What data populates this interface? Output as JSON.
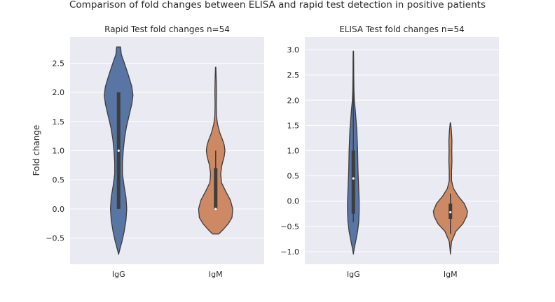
{
  "figure": {
    "suptitle": "Comparison of fold changes between ELISA and rapid test detection in positive patients"
  },
  "colors": {
    "background": "#eaeaf2",
    "grid": "#ffffff",
    "igg": "#5875a4",
    "igm": "#cc8963",
    "outline": "#3d3d3d",
    "box": "#3d3d3d",
    "median": "#ffffff"
  },
  "chart_data": [
    {
      "type": "violin",
      "title": "Rapid Test fold changes n=54",
      "xlabel": "",
      "ylabel": "Fold change",
      "categories": [
        "IgG",
        "IgM"
      ],
      "ylim": [
        -0.95,
        2.95
      ],
      "yticks": [
        -0.5,
        0.0,
        0.5,
        1.0,
        1.5,
        2.0,
        2.5
      ],
      "ytick_labels": [
        "−0.5",
        "0.0",
        "0.5",
        "1.0",
        "1.5",
        "2.0",
        "2.5"
      ],
      "grid": true,
      "series": [
        {
          "category": "IgG",
          "range": [
            -0.78,
            2.78
          ],
          "box": {
            "q1": 0.0,
            "median": 1.0,
            "q3": 2.0,
            "whisker_low": 0.0,
            "whisker_high": 2.0
          },
          "profile": [
            [
              -0.78,
              0
            ],
            [
              -0.7,
              0.03
            ],
            [
              -0.55,
              0.09
            ],
            [
              -0.4,
              0.14
            ],
            [
              -0.2,
              0.19
            ],
            [
              0.0,
              0.21
            ],
            [
              0.2,
              0.19
            ],
            [
              0.4,
              0.14
            ],
            [
              0.6,
              0.1
            ],
            [
              0.8,
              0.1
            ],
            [
              1.0,
              0.12
            ],
            [
              1.2,
              0.15
            ],
            [
              1.4,
              0.2
            ],
            [
              1.6,
              0.27
            ],
            [
              1.8,
              0.34
            ],
            [
              1.95,
              0.37
            ],
            [
              2.1,
              0.34
            ],
            [
              2.3,
              0.25
            ],
            [
              2.5,
              0.15
            ],
            [
              2.65,
              0.07
            ],
            [
              2.78,
              0.05
            ]
          ]
        },
        {
          "category": "IgM",
          "range": [
            -0.43,
            2.43
          ],
          "box": {
            "q1": 0.0,
            "median": 0.0,
            "q3": 0.7,
            "whisker_low": 0.0,
            "whisker_high": 1.0
          },
          "profile": [
            [
              -0.43,
              0.08
            ],
            [
              -0.35,
              0.2
            ],
            [
              -0.25,
              0.33
            ],
            [
              -0.15,
              0.42
            ],
            [
              0.0,
              0.44
            ],
            [
              0.15,
              0.38
            ],
            [
              0.3,
              0.26
            ],
            [
              0.45,
              0.15
            ],
            [
              0.6,
              0.13
            ],
            [
              0.75,
              0.16
            ],
            [
              0.9,
              0.22
            ],
            [
              1.0,
              0.24
            ],
            [
              1.1,
              0.22
            ],
            [
              1.2,
              0.17
            ],
            [
              1.3,
              0.11
            ],
            [
              1.45,
              0.05
            ],
            [
              1.6,
              0.02
            ],
            [
              1.8,
              0.015
            ],
            [
              2.0,
              0.02
            ],
            [
              2.2,
              0.015
            ],
            [
              2.43,
              0.005
            ]
          ]
        }
      ]
    },
    {
      "type": "violin",
      "title": "ELISA Test fold changes n=54",
      "xlabel": "",
      "ylabel": "",
      "categories": [
        "IgG",
        "IgM"
      ],
      "ylim": [
        -1.25,
        3.25
      ],
      "yticks": [
        -1.0,
        -0.5,
        0.0,
        0.5,
        1.0,
        1.5,
        2.0,
        2.5,
        3.0
      ],
      "ytick_labels": [
        "−1.0",
        "−0.5",
        "0.0",
        "0.5",
        "1.0",
        "1.5",
        "2.0",
        "2.5",
        "3.0"
      ],
      "grid": true,
      "series": [
        {
          "category": "IgG",
          "range": [
            -1.05,
            2.97
          ],
          "box": {
            "q1": -0.25,
            "median": 0.45,
            "q3": 1.0,
            "whisker_low": -0.42,
            "whisker_high": 2.9
          },
          "profile": [
            [
              -1.05,
              0
            ],
            [
              -0.95,
              0.02
            ],
            [
              -0.8,
              0.06
            ],
            [
              -0.6,
              0.11
            ],
            [
              -0.4,
              0.14
            ],
            [
              -0.2,
              0.15
            ],
            [
              0.0,
              0.15
            ],
            [
              0.2,
              0.14
            ],
            [
              0.4,
              0.13
            ],
            [
              0.6,
              0.12
            ],
            [
              0.8,
              0.115
            ],
            [
              1.0,
              0.11
            ],
            [
              1.2,
              0.1
            ],
            [
              1.4,
              0.09
            ],
            [
              1.6,
              0.07
            ],
            [
              1.8,
              0.05
            ],
            [
              2.0,
              0.025
            ],
            [
              2.2,
              0.015
            ],
            [
              2.5,
              0.01
            ],
            [
              2.8,
              0.008
            ],
            [
              2.97,
              0.005
            ]
          ]
        },
        {
          "category": "IgM",
          "range": [
            -1.05,
            1.55
          ],
          "box": {
            "q1": -0.35,
            "median": -0.22,
            "q3": -0.05,
            "whisker_low": -0.65,
            "whisker_high": 0.15
          },
          "profile": [
            [
              -1.05,
              0
            ],
            [
              -0.95,
              0.01
            ],
            [
              -0.8,
              0.03
            ],
            [
              -0.6,
              0.14
            ],
            [
              -0.45,
              0.32
            ],
            [
              -0.3,
              0.42
            ],
            [
              -0.2,
              0.44
            ],
            [
              -0.05,
              0.36
            ],
            [
              0.1,
              0.2
            ],
            [
              0.25,
              0.08
            ],
            [
              0.4,
              0.03
            ],
            [
              0.6,
              0.03
            ],
            [
              0.8,
              0.04
            ],
            [
              1.0,
              0.035
            ],
            [
              1.2,
              0.04
            ],
            [
              1.4,
              0.025
            ],
            [
              1.55,
              0.005
            ]
          ]
        }
      ]
    }
  ]
}
